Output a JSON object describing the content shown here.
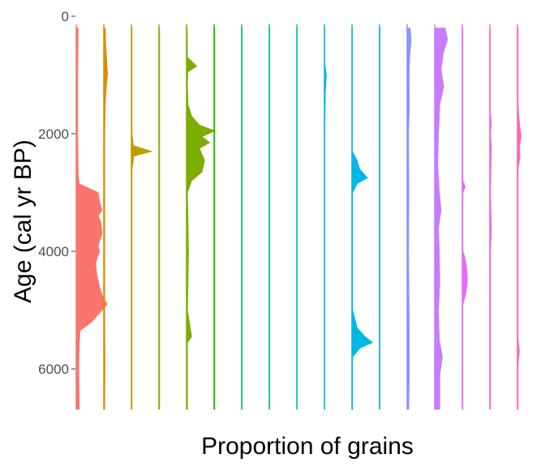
{
  "chart_data": {
    "type": "area",
    "orientation": "stratigraphic (age on vertical axis, one silhouette per taxon)",
    "title": "",
    "xlabel": "Proportion of grains",
    "ylabel": "Age (cal yr BP)",
    "ylim": [
      0,
      6700
    ],
    "y_reversed": true,
    "y_ticks": [
      0,
      2000,
      4000,
      6000
    ],
    "y_tick_labels": [
      "0",
      "2000",
      "4000",
      "6000"
    ],
    "grid": false,
    "legend": "none",
    "series": [
      {
        "color": "#F8766D",
        "points": [
          [
            200,
            0.008
          ],
          [
            1000,
            0.006
          ],
          [
            2000,
            0.006
          ],
          [
            2700,
            0.008
          ],
          [
            2850,
            0.012
          ],
          [
            3000,
            0.085
          ],
          [
            3150,
            0.09
          ],
          [
            3300,
            0.1
          ],
          [
            3400,
            0.085
          ],
          [
            3500,
            0.095
          ],
          [
            3700,
            0.1
          ],
          [
            3900,
            0.085
          ],
          [
            4000,
            0.09
          ],
          [
            4200,
            0.075
          ],
          [
            4400,
            0.08
          ],
          [
            4600,
            0.09
          ],
          [
            4800,
            0.105
          ],
          [
            4900,
            0.12
          ],
          [
            5000,
            0.1
          ],
          [
            5200,
            0.06
          ],
          [
            5350,
            0.015
          ],
          [
            5600,
            0.012
          ],
          [
            6000,
            0.01
          ],
          [
            6600,
            0.012
          ]
        ]
      },
      {
        "color": "#E18A00",
        "points": [
          [
            200,
            0.006
          ],
          [
            500,
            0.008
          ],
          [
            800,
            0.012
          ],
          [
            1000,
            0.015
          ],
          [
            1200,
            0.01
          ],
          [
            1500,
            0.006
          ],
          [
            2000,
            0.004
          ],
          [
            3000,
            0.004
          ],
          [
            4000,
            0.004
          ],
          [
            5000,
            0.004
          ],
          [
            6000,
            0.005
          ],
          [
            6600,
            0.004
          ]
        ]
      },
      {
        "color": "#BE9C00",
        "points": [
          [
            200,
            0.003
          ],
          [
            1000,
            0.003
          ],
          [
            2000,
            0.003
          ],
          [
            2200,
            0.008
          ],
          [
            2300,
            0.08
          ],
          [
            2380,
            0.01
          ],
          [
            2600,
            0.003
          ],
          [
            4000,
            0.003
          ],
          [
            5000,
            0.003
          ],
          [
            6000,
            0.003
          ],
          [
            6600,
            0.003
          ]
        ]
      },
      {
        "color": "#8CAB00",
        "points": [
          [
            200,
            0.003
          ],
          [
            1000,
            0.003
          ],
          [
            2000,
            0.003
          ],
          [
            3000,
            0.003
          ],
          [
            4000,
            0.003
          ],
          [
            5000,
            0.003
          ],
          [
            6000,
            0.003
          ],
          [
            6600,
            0.003
          ]
        ]
      },
      {
        "color": "#7CAE00",
        "points": [
          [
            200,
            0.003
          ],
          [
            700,
            0.004
          ],
          [
            850,
            0.04
          ],
          [
            950,
            0.005
          ],
          [
            1200,
            0.004
          ],
          [
            1500,
            0.006
          ],
          [
            1700,
            0.02
          ],
          [
            1850,
            0.05
          ],
          [
            1950,
            0.11
          ],
          [
            2050,
            0.06
          ],
          [
            2150,
            0.09
          ],
          [
            2250,
            0.05
          ],
          [
            2450,
            0.07
          ],
          [
            2650,
            0.06
          ],
          [
            2800,
            0.02
          ],
          [
            3000,
            0.004
          ],
          [
            4000,
            0.008
          ],
          [
            5000,
            0.004
          ],
          [
            5450,
            0.02
          ],
          [
            5550,
            0.004
          ],
          [
            6000,
            0.004
          ],
          [
            6600,
            0.004
          ]
        ]
      },
      {
        "color": "#24B700",
        "points": [
          [
            200,
            0.003
          ],
          [
            2000,
            0.003
          ],
          [
            4000,
            0.003
          ],
          [
            6000,
            0.003
          ],
          [
            6600,
            0.003
          ]
        ]
      },
      {
        "color": "#00BE70",
        "points": [
          [
            200,
            0.002
          ],
          [
            2000,
            0.002
          ],
          [
            4000,
            0.002
          ],
          [
            6000,
            0.002
          ],
          [
            6600,
            0.002
          ]
        ]
      },
      {
        "color": "#00C08B",
        "points": [
          [
            200,
            0.002
          ],
          [
            2000,
            0.002
          ],
          [
            4000,
            0.002
          ],
          [
            6000,
            0.002
          ],
          [
            6600,
            0.002
          ]
        ]
      },
      {
        "color": "#00C1AB",
        "points": [
          [
            200,
            0.002
          ],
          [
            2000,
            0.002
          ],
          [
            4000,
            0.002
          ],
          [
            6000,
            0.002
          ],
          [
            6600,
            0.002
          ]
        ]
      },
      {
        "color": "#00BBDA",
        "points": [
          [
            200,
            0.002
          ],
          [
            800,
            0.002
          ],
          [
            1000,
            0.008
          ],
          [
            1300,
            0.004
          ],
          [
            2000,
            0.002
          ],
          [
            4000,
            0.002
          ],
          [
            6000,
            0.002
          ],
          [
            6600,
            0.002
          ]
        ]
      },
      {
        "color": "#00B8E7",
        "points": [
          [
            200,
            0.002
          ],
          [
            2300,
            0.002
          ],
          [
            2450,
            0.02
          ],
          [
            2600,
            0.03
          ],
          [
            2750,
            0.06
          ],
          [
            2850,
            0.02
          ],
          [
            3000,
            0.003
          ],
          [
            4000,
            0.003
          ],
          [
            5000,
            0.003
          ],
          [
            5300,
            0.02
          ],
          [
            5450,
            0.05
          ],
          [
            5550,
            0.08
          ],
          [
            5650,
            0.03
          ],
          [
            5800,
            0.003
          ],
          [
            6600,
            0.003
          ]
        ]
      },
      {
        "color": "#00A9FF",
        "points": [
          [
            200,
            0.002
          ],
          [
            2000,
            0.002
          ],
          [
            4000,
            0.002
          ],
          [
            6000,
            0.002
          ],
          [
            6600,
            0.002
          ]
        ]
      },
      {
        "color": "#8B93FF",
        "points": [
          [
            200,
            0.012
          ],
          [
            400,
            0.016
          ],
          [
            700,
            0.01
          ],
          [
            1000,
            0.008
          ],
          [
            1500,
            0.009
          ],
          [
            2000,
            0.006
          ],
          [
            3000,
            0.007
          ],
          [
            4000,
            0.006
          ],
          [
            5000,
            0.008
          ],
          [
            6000,
            0.009
          ],
          [
            6600,
            0.007
          ]
        ]
      },
      {
        "color": "#C77CFF",
        "points": [
          [
            200,
            0.04
          ],
          [
            400,
            0.05
          ],
          [
            600,
            0.035
          ],
          [
            900,
            0.025
          ],
          [
            1200,
            0.035
          ],
          [
            1500,
            0.02
          ],
          [
            2000,
            0.015
          ],
          [
            2500,
            0.012
          ],
          [
            3000,
            0.018
          ],
          [
            3300,
            0.025
          ],
          [
            3600,
            0.015
          ],
          [
            4000,
            0.018
          ],
          [
            4500,
            0.02
          ],
          [
            5000,
            0.015
          ],
          [
            5500,
            0.018
          ],
          [
            5800,
            0.03
          ],
          [
            6100,
            0.02
          ],
          [
            6600,
            0.02
          ]
        ]
      },
      {
        "color": "#E76BF3",
        "points": [
          [
            200,
            0.003
          ],
          [
            2800,
            0.003
          ],
          [
            2900,
            0.012
          ],
          [
            3000,
            0.003
          ],
          [
            4000,
            0.003
          ],
          [
            4100,
            0.01
          ],
          [
            4300,
            0.018
          ],
          [
            4500,
            0.02
          ],
          [
            4700,
            0.015
          ],
          [
            4900,
            0.003
          ],
          [
            6600,
            0.003
          ]
        ]
      },
      {
        "color": "#FA62DB",
        "points": [
          [
            200,
            0.002
          ],
          [
            1600,
            0.002
          ],
          [
            1800,
            0.006
          ],
          [
            2000,
            0.003
          ],
          [
            2200,
            0.006
          ],
          [
            3000,
            0.003
          ],
          [
            3600,
            0.006
          ],
          [
            4000,
            0.003
          ],
          [
            6600,
            0.003
          ]
        ]
      },
      {
        "color": "#FF62BC",
        "points": [
          [
            200,
            0.003
          ],
          [
            1500,
            0.003
          ],
          [
            1700,
            0.006
          ],
          [
            1900,
            0.01
          ],
          [
            2050,
            0.015
          ],
          [
            2200,
            0.008
          ],
          [
            2400,
            0.01
          ],
          [
            2600,
            0.003
          ],
          [
            5500,
            0.003
          ],
          [
            5700,
            0.008
          ],
          [
            5900,
            0.003
          ],
          [
            6600,
            0.003
          ]
        ]
      }
    ]
  }
}
